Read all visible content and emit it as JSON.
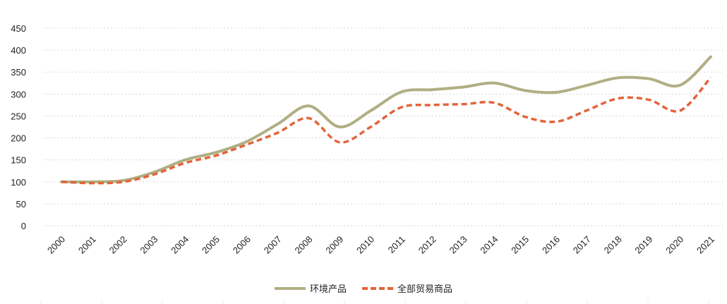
{
  "chart_data": {
    "type": "line",
    "title": "",
    "xlabel": "",
    "ylabel": "",
    "ylim": [
      0,
      450
    ],
    "yticks": [
      0,
      50,
      100,
      150,
      200,
      250,
      300,
      350,
      400,
      450
    ],
    "grid": true,
    "legend_position": "bottom",
    "categories": [
      "2000",
      "2001",
      "2002",
      "2003",
      "2004",
      "2005",
      "2006",
      "2007",
      "2008",
      "2009",
      "2010",
      "2011",
      "2012",
      "2013",
      "2014",
      "2015",
      "2016",
      "2017",
      "2018",
      "2019",
      "2020",
      "2021"
    ],
    "series": [
      {
        "name": "环境产品",
        "color": "#b0af84",
        "style": "solid",
        "values": [
          100,
          100,
          103,
          122,
          150,
          167,
          192,
          232,
          273,
          225,
          262,
          305,
          310,
          316,
          325,
          308,
          304,
          320,
          337,
          335,
          320,
          385
        ]
      },
      {
        "name": "全部贸易商品",
        "color": "#e2643a",
        "style": "dashed",
        "values": [
          100,
          97,
          100,
          117,
          143,
          160,
          185,
          212,
          245,
          190,
          225,
          270,
          275,
          277,
          280,
          248,
          237,
          263,
          290,
          287,
          262,
          338
        ]
      }
    ]
  }
}
